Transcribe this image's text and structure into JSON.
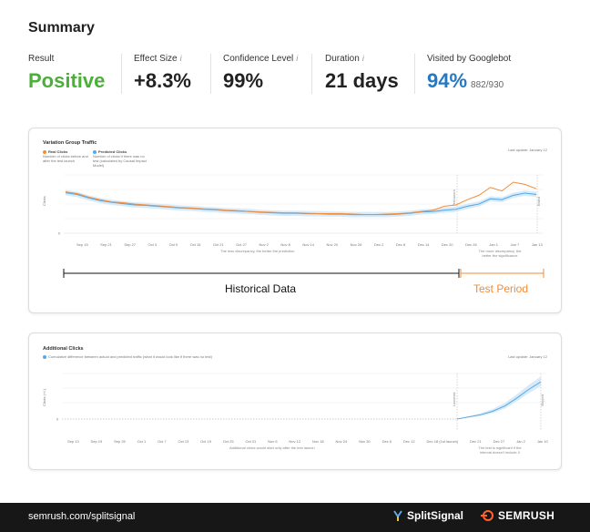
{
  "summary": {
    "title": "Summary",
    "result": {
      "label": "Result",
      "value": "Positive"
    },
    "effect": {
      "label": "Effect Size",
      "value": "+8.3%"
    },
    "confidence": {
      "label": "Confidence Level",
      "value": "99%"
    },
    "duration": {
      "label": "Duration",
      "value": "21 days"
    },
    "visited": {
      "label": "Visited by Googlebot",
      "value": "94%",
      "sub": "882/930"
    },
    "info_icon": "info-icon"
  },
  "chart_data": [
    {
      "type": "line",
      "title": "Variation Group Traffic",
      "updated": "Last update: January 12",
      "ylabel": "Clicks",
      "y_zero_label": "0",
      "legend": [
        {
          "name": "Real Clicks",
          "desc": "Number of clicks before and after the test launch",
          "color": "#f28c38"
        },
        {
          "name": "Predicted Clicks",
          "desc": "Number of clicks if there was no test (calculated by Causal Impact Model)",
          "color": "#5aa9e6"
        }
      ],
      "x_ticks": [
        "Sep 15",
        "Sep 21",
        "Sep 27",
        "Oct 3",
        "Oct 9",
        "Oct 15",
        "Oct 21",
        "Oct 27",
        "Nov 2",
        "Nov 8",
        "Nov 14",
        "Nov 20",
        "Nov 26",
        "Dec 2",
        "Dec 8",
        "Dec 14",
        "Dec 20",
        "Dec 26",
        "Jan 1",
        "Jan 7",
        "Jan 13"
      ],
      "start_marker": "Test launch",
      "end_marker": "Ended",
      "note_left": "The less discrepancy, the better the prediction",
      "note_right": "The more discrepancy, the better the significance",
      "series": [
        {
          "name": "Real Clicks",
          "values": [
            0.78,
            0.74,
            0.66,
            0.6,
            0.55,
            0.53,
            0.5,
            0.48,
            0.46,
            0.44,
            0.42,
            0.41,
            0.39,
            0.38,
            0.36,
            0.35,
            0.33,
            0.32,
            0.31,
            0.3,
            0.3,
            0.29,
            0.28,
            0.28,
            0.28,
            0.27,
            0.26,
            0.26,
            0.27,
            0.28,
            0.3,
            0.33,
            0.36,
            0.45,
            0.48,
            0.6,
            0.7,
            0.88,
            0.8,
            1.0,
            0.95,
            0.85
          ]
        },
        {
          "name": "Predicted Clicks",
          "values": [
            0.76,
            0.72,
            0.64,
            0.58,
            0.54,
            0.51,
            0.48,
            0.47,
            0.45,
            0.43,
            0.41,
            0.4,
            0.38,
            0.37,
            0.35,
            0.34,
            0.33,
            0.31,
            0.3,
            0.29,
            0.29,
            0.28,
            0.28,
            0.27,
            0.27,
            0.26,
            0.26,
            0.26,
            0.26,
            0.27,
            0.29,
            0.32,
            0.33,
            0.36,
            0.38,
            0.45,
            0.5,
            0.62,
            0.6,
            0.7,
            0.75,
            0.72
          ]
        }
      ]
    },
    {
      "type": "area",
      "title": "Additional Clicks",
      "updated": "Last update: January 12",
      "ylabel": "Clicks (+/-)",
      "y_zero_label": "0",
      "legend": [
        {
          "name": "",
          "desc": "Cumulative difference between actual and predicted traffic (what it would look like if there was no test)",
          "color": "#5aa9e6"
        }
      ],
      "x_ticks": [
        "Sep 13",
        "Sep 19",
        "Sep 25",
        "Oct 1",
        "Oct 7",
        "Oct 13",
        "Oct 19",
        "Oct 25",
        "Oct 31",
        "Nov 6",
        "Nov 12",
        "Nov 18",
        "Nov 24",
        "Nov 30",
        "Dec 6",
        "Dec 12",
        "Dec 18 (1st launch)",
        "Dec 21",
        "Dec 27",
        "Jan 2",
        "Jan 10"
      ],
      "start_marker": "Launched",
      "end_marker": "Stopped",
      "note_left": "Additional clicks would start only after the test launch",
      "note_right": "The test is significant if the interval doesn't include 0",
      "series": [
        {
          "name": "",
          "values": [
            0,
            0.05,
            0.1,
            0.18,
            0.3,
            0.48,
            0.68,
            0.85
          ]
        }
      ]
    }
  ],
  "periods": {
    "historical": "Historical Data",
    "test": "Test Period"
  },
  "colors": {
    "positive": "#4caf3a",
    "accent_blue": "#2379c4",
    "test_orange": "#f28c38",
    "predicted_blue": "#5aa9e6"
  },
  "footer": {
    "url": "semrush.com/splitsignal",
    "brand1": "SplitSignal",
    "brand2": "SEMRUSH"
  }
}
